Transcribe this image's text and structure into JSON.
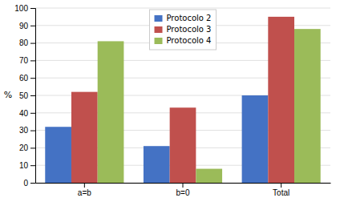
{
  "chart_data": {
    "type": "bar",
    "categories": [
      "a=b",
      "b=0",
      "Total"
    ],
    "series": [
      {
        "name": "Protocolo 2",
        "color": "#4472C4",
        "values": [
          32,
          21,
          50
        ]
      },
      {
        "name": "Protocolo 3",
        "color": "#C0504D",
        "values": [
          52,
          43,
          95
        ]
      },
      {
        "name": "Protocolo 4",
        "color": "#9BBB59",
        "values": [
          81,
          8,
          88
        ]
      }
    ],
    "ylabel": "%",
    "ylim": [
      0,
      100
    ],
    "yticks": [
      0,
      10,
      20,
      30,
      40,
      50,
      60,
      70,
      80,
      90,
      100
    ],
    "grid": true,
    "legend": "top"
  }
}
